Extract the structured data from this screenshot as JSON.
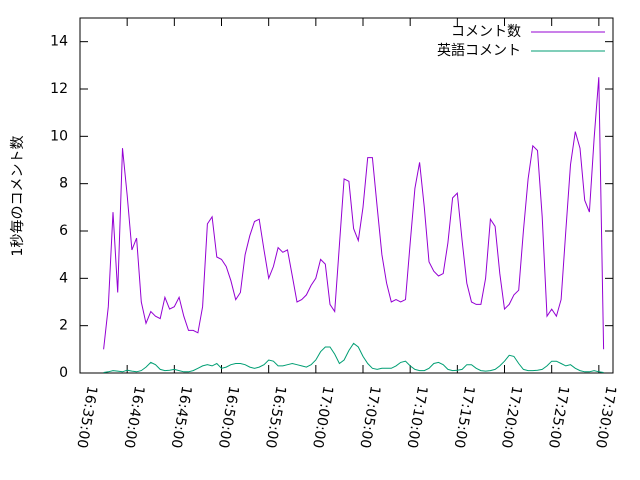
{
  "chart_data": {
    "type": "line",
    "y_label": "1秒毎のコメント数",
    "x": [
      "16:37:30",
      "16:38:00",
      "16:38:30",
      "16:39:00",
      "16:39:30",
      "16:40:00",
      "16:40:30",
      "16:41:00",
      "16:41:30",
      "16:42:00",
      "16:42:30",
      "16:43:00",
      "16:43:30",
      "16:44:00",
      "16:44:30",
      "16:45:00",
      "16:45:30",
      "16:46:00",
      "16:46:30",
      "16:47:00",
      "16:47:30",
      "16:48:00",
      "16:48:30",
      "16:49:00",
      "16:49:30",
      "16:50:00",
      "16:50:30",
      "16:51:00",
      "16:51:30",
      "16:52:00",
      "16:52:30",
      "16:53:00",
      "16:53:30",
      "16:54:00",
      "16:54:30",
      "16:55:00",
      "16:55:30",
      "16:56:00",
      "16:56:30",
      "16:57:00",
      "16:57:30",
      "16:58:00",
      "16:58:30",
      "16:59:00",
      "16:59:30",
      "17:00:00",
      "17:00:30",
      "17:01:00",
      "17:01:30",
      "17:02:00",
      "17:02:30",
      "17:03:00",
      "17:03:30",
      "17:04:00",
      "17:04:30",
      "17:05:00",
      "17:05:30",
      "17:06:00",
      "17:06:30",
      "17:07:00",
      "17:07:30",
      "17:08:00",
      "17:08:30",
      "17:09:00",
      "17:09:30",
      "17:10:00",
      "17:10:30",
      "17:11:00",
      "17:11:30",
      "17:12:00",
      "17:12:30",
      "17:13:00",
      "17:13:30",
      "17:14:00",
      "17:14:30",
      "17:15:00",
      "17:15:30",
      "17:16:00",
      "17:16:30",
      "17:17:00",
      "17:17:30",
      "17:18:00",
      "17:18:30",
      "17:19:00",
      "17:19:30",
      "17:20:00",
      "17:20:30",
      "17:21:00",
      "17:21:30",
      "17:22:00",
      "17:22:30",
      "17:23:00",
      "17:23:30",
      "17:24:00",
      "17:24:30",
      "17:25:00",
      "17:25:30",
      "17:26:00",
      "17:26:30",
      "17:27:00",
      "17:27:30",
      "17:28:00",
      "17:28:30",
      "17:29:00",
      "17:29:30",
      "17:30:00",
      "17:30:30"
    ],
    "series": [
      {
        "name": "コメント数",
        "color": "#9400d3",
        "values": [
          1.0,
          2.8,
          6.8,
          3.4,
          9.5,
          7.5,
          5.2,
          5.7,
          3.0,
          2.1,
          2.6,
          2.4,
          2.3,
          3.2,
          2.7,
          2.8,
          3.2,
          2.4,
          1.8,
          1.8,
          1.7,
          2.8,
          6.3,
          6.6,
          4.9,
          4.8,
          4.5,
          3.9,
          3.1,
          3.4,
          5.0,
          5.8,
          6.4,
          6.5,
          5.2,
          4.0,
          4.5,
          5.3,
          5.1,
          5.2,
          4.1,
          3.0,
          3.1,
          3.3,
          3.7,
          4.0,
          4.8,
          4.6,
          2.9,
          2.6,
          5.4,
          8.2,
          8.1,
          6.1,
          5.6,
          7.0,
          9.1,
          9.1,
          7.0,
          5.0,
          3.8,
          3.0,
          3.1,
          3.0,
          3.1,
          5.5,
          7.8,
          8.9,
          7.0,
          4.7,
          4.3,
          4.1,
          4.2,
          5.5,
          7.4,
          7.6,
          5.6,
          3.8,
          3.0,
          2.9,
          2.9,
          4.0,
          6.5,
          6.2,
          4.2,
          2.7,
          2.9,
          3.3,
          3.5,
          6.0,
          8.2,
          9.6,
          9.4,
          6.6,
          2.4,
          2.7,
          2.4,
          3.1,
          6.0,
          8.8,
          10.2,
          9.5,
          7.3,
          6.8,
          9.9,
          12.5,
          1.0
        ]
      },
      {
        "name": "英語コメント",
        "color": "#009e73",
        "values": [
          0.02,
          0.05,
          0.1,
          0.08,
          0.05,
          0.12,
          0.08,
          0.05,
          0.1,
          0.25,
          0.45,
          0.35,
          0.15,
          0.1,
          0.12,
          0.15,
          0.1,
          0.05,
          0.05,
          0.1,
          0.2,
          0.3,
          0.35,
          0.3,
          0.4,
          0.2,
          0.25,
          0.35,
          0.4,
          0.4,
          0.35,
          0.25,
          0.2,
          0.25,
          0.35,
          0.55,
          0.5,
          0.3,
          0.3,
          0.35,
          0.4,
          0.35,
          0.3,
          0.25,
          0.35,
          0.55,
          0.9,
          1.1,
          1.1,
          0.8,
          0.4,
          0.55,
          0.95,
          1.25,
          1.1,
          0.7,
          0.4,
          0.2,
          0.15,
          0.2,
          0.2,
          0.2,
          0.3,
          0.45,
          0.5,
          0.3,
          0.15,
          0.1,
          0.1,
          0.2,
          0.4,
          0.45,
          0.35,
          0.15,
          0.1,
          0.12,
          0.15,
          0.35,
          0.35,
          0.2,
          0.1,
          0.08,
          0.1,
          0.15,
          0.3,
          0.5,
          0.75,
          0.7,
          0.4,
          0.15,
          0.1,
          0.1,
          0.12,
          0.15,
          0.3,
          0.5,
          0.5,
          0.4,
          0.3,
          0.35,
          0.2,
          0.1,
          0.05,
          0.05,
          0.1,
          0.05,
          0.02
        ]
      }
    ],
    "xlim": [
      "16:35:00",
      "17:31:30"
    ],
    "xticks": [
      "16:35:00",
      "16:40:00",
      "16:45:00",
      "16:50:00",
      "16:55:00",
      "17:00:00",
      "17:05:00",
      "17:10:00",
      "17:15:00",
      "17:20:00",
      "17:25:00",
      "17:30:00"
    ],
    "ylim": [
      0,
      15
    ],
    "yticks": [
      0,
      2,
      4,
      6,
      8,
      10,
      12,
      14
    ],
    "legend": "top-right"
  }
}
